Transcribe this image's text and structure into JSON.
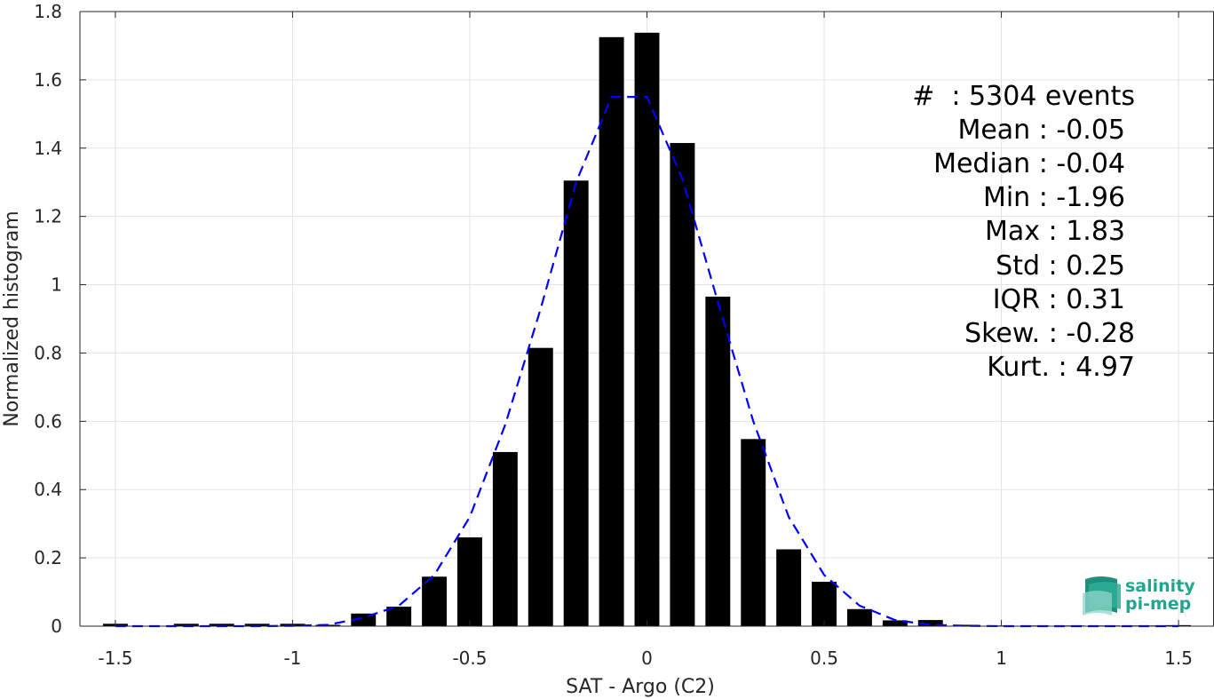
{
  "chart_data": {
    "type": "bar",
    "title": "",
    "xlabel": "SAT - Argo (C2)",
    "ylabel": "Normalized histogram",
    "xlim": [
      -1.6,
      1.6
    ],
    "ylim": [
      0,
      1.8
    ],
    "xticks": [
      -1.5,
      -1,
      -0.5,
      0,
      0.5,
      1,
      1.5
    ],
    "xtick_labels": [
      "-1.5",
      "-1",
      "-0.5",
      "0",
      "0.5",
      "1",
      "1.5"
    ],
    "yticks": [
      0,
      0.2,
      0.4,
      0.6,
      0.8,
      1,
      1.2,
      1.4,
      1.6,
      1.8
    ],
    "ytick_labels": [
      "0",
      "0.2",
      "0.4",
      "0.6",
      "0.8",
      "1",
      "1.2",
      "1.4",
      "1.6",
      "1.8"
    ],
    "grid": true,
    "bar_color": "#000000",
    "bin_width": 0.1,
    "bars": [
      {
        "x": -1.5,
        "y": 0.007
      },
      {
        "x": -1.3,
        "y": 0.007
      },
      {
        "x": -1.2,
        "y": 0.007
      },
      {
        "x": -1.1,
        "y": 0.007
      },
      {
        "x": -1.0,
        "y": 0.007
      },
      {
        "x": -0.9,
        "y": 0.004
      },
      {
        "x": -0.8,
        "y": 0.037
      },
      {
        "x": -0.7,
        "y": 0.057
      },
      {
        "x": -0.6,
        "y": 0.145
      },
      {
        "x": -0.5,
        "y": 0.26
      },
      {
        "x": -0.4,
        "y": 0.51
      },
      {
        "x": -0.3,
        "y": 0.815
      },
      {
        "x": -0.2,
        "y": 1.305
      },
      {
        "x": -0.1,
        "y": 1.725
      },
      {
        "x": 0.0,
        "y": 1.738
      },
      {
        "x": 0.1,
        "y": 1.415
      },
      {
        "x": 0.2,
        "y": 0.965
      },
      {
        "x": 0.3,
        "y": 0.548
      },
      {
        "x": 0.4,
        "y": 0.225
      },
      {
        "x": 0.5,
        "y": 0.13
      },
      {
        "x": 0.6,
        "y": 0.05
      },
      {
        "x": 0.7,
        "y": 0.017
      },
      {
        "x": 0.8,
        "y": 0.018
      },
      {
        "x": 0.9,
        "y": 0.004
      },
      {
        "x": 1.0,
        "y": 0.002
      },
      {
        "x": 1.1,
        "y": 0.002
      },
      {
        "x": 1.2,
        "y": 0.002
      },
      {
        "x": 1.3,
        "y": 0.002
      },
      {
        "x": 1.4,
        "y": 0.002
      },
      {
        "x": 1.5,
        "y": 0.003
      }
    ],
    "fit_curve": {
      "style": "dashed",
      "color": "#0000ff",
      "points": [
        [
          -1.5,
          0.0
        ],
        [
          -1.4,
          0.0
        ],
        [
          -1.3,
          0.0
        ],
        [
          -1.2,
          0.0
        ],
        [
          -1.1,
          0.0
        ],
        [
          -1.0,
          0.001
        ],
        [
          -0.9,
          0.004
        ],
        [
          -0.8,
          0.025
        ],
        [
          -0.7,
          0.06
        ],
        [
          -0.6,
          0.15
        ],
        [
          -0.5,
          0.32
        ],
        [
          -0.4,
          0.59
        ],
        [
          -0.3,
          0.93
        ],
        [
          -0.2,
          1.3
        ],
        [
          -0.1,
          1.55
        ],
        [
          0.0,
          1.55
        ],
        [
          0.1,
          1.31
        ],
        [
          0.2,
          0.95
        ],
        [
          0.3,
          0.6
        ],
        [
          0.4,
          0.32
        ],
        [
          0.5,
          0.15
        ],
        [
          0.6,
          0.06
        ],
        [
          0.7,
          0.018
        ],
        [
          0.8,
          0.004
        ],
        [
          0.9,
          0.001
        ],
        [
          1.0,
          0.0
        ],
        [
          1.1,
          0.0
        ],
        [
          1.2,
          0.0
        ],
        [
          1.3,
          0.0
        ],
        [
          1.4,
          0.0
        ],
        [
          1.5,
          0.0
        ]
      ]
    },
    "annotations": [
      "#  : 5304 events",
      "Mean : -0.05",
      "Median : -0.04",
      "Min : -1.96",
      "Max : 1.83",
      "Std : 0.25",
      "IQR : 0.31",
      "Skew. : -0.28",
      "Kurt. : 4.97"
    ]
  },
  "logo": {
    "line1": "salinity",
    "line2": "pi-mep",
    "color": "#22a58f"
  }
}
